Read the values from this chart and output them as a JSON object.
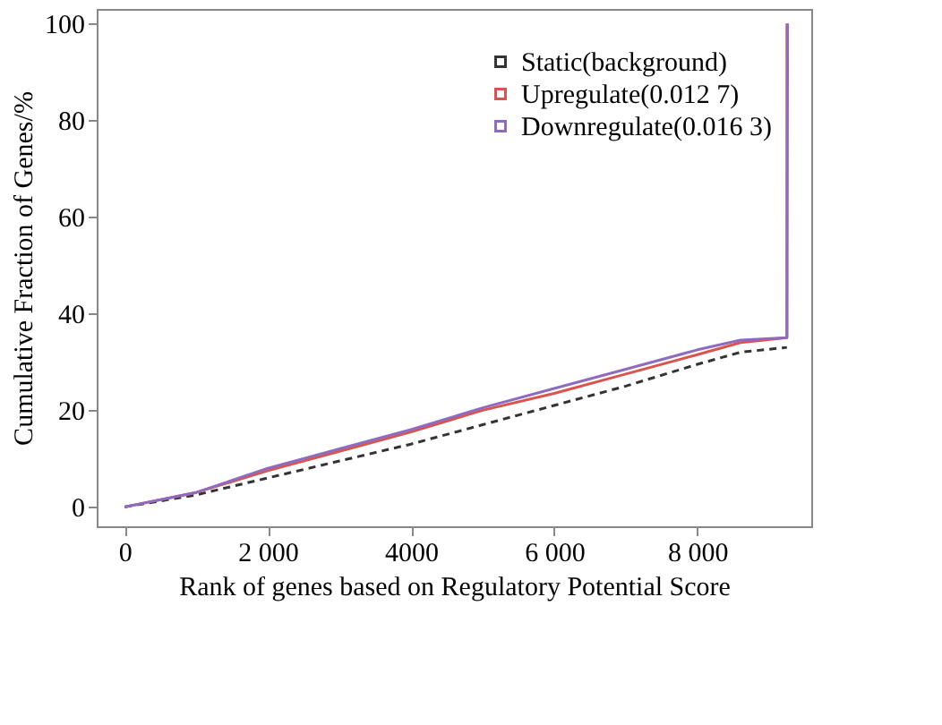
{
  "chart_data": {
    "type": "line",
    "xlabel": "Rank of genes based on Regulatory Potential Score",
    "ylabel": "Cumulative Fraction of Genes/%",
    "xlim": [
      -390,
      9590
    ],
    "ylim": [
      -4,
      103
    ],
    "xticks": [
      0,
      {
        "value": 2000,
        "label": "2 000"
      },
      4000,
      {
        "value": 6000,
        "label": "6 000"
      },
      {
        "value": 8000,
        "label": "8 000"
      }
    ],
    "yticks": [
      0,
      20,
      40,
      60,
      80,
      100
    ],
    "grid": false,
    "legend": "top right",
    "marker": "none",
    "series": [
      {
        "name": "Static(background)",
        "color": "#333333",
        "line_style": "dashed",
        "x": [
          0,
          1000,
          2000,
          3000,
          4000,
          5000,
          6000,
          7000,
          8000,
          8600,
          9250
        ],
        "values": [
          0,
          2.5,
          6,
          9.5,
          13,
          17,
          21,
          25,
          29.5,
          32,
          33
        ]
      },
      {
        "name": "Upregulate(0.012 7)",
        "color": "#d9534f",
        "line_style": "solid",
        "x": [
          0,
          1000,
          2000,
          3000,
          4000,
          5000,
          6000,
          7000,
          8000,
          8600,
          9250,
          9250
        ],
        "values": [
          0,
          3,
          7.5,
          11.5,
          15.5,
          20,
          23.5,
          27.5,
          31.5,
          34,
          35,
          100
        ]
      },
      {
        "name": "Downregulate(0.016 3)",
        "color": "#8e6bbf",
        "line_style": "solid",
        "x": [
          0,
          1000,
          2000,
          3000,
          4000,
          5000,
          6000,
          7000,
          8000,
          8600,
          9250,
          9260
        ],
        "values": [
          0,
          3,
          8,
          12,
          16,
          20.5,
          24.5,
          28.5,
          32.5,
          34.5,
          35,
          100
        ]
      }
    ]
  }
}
